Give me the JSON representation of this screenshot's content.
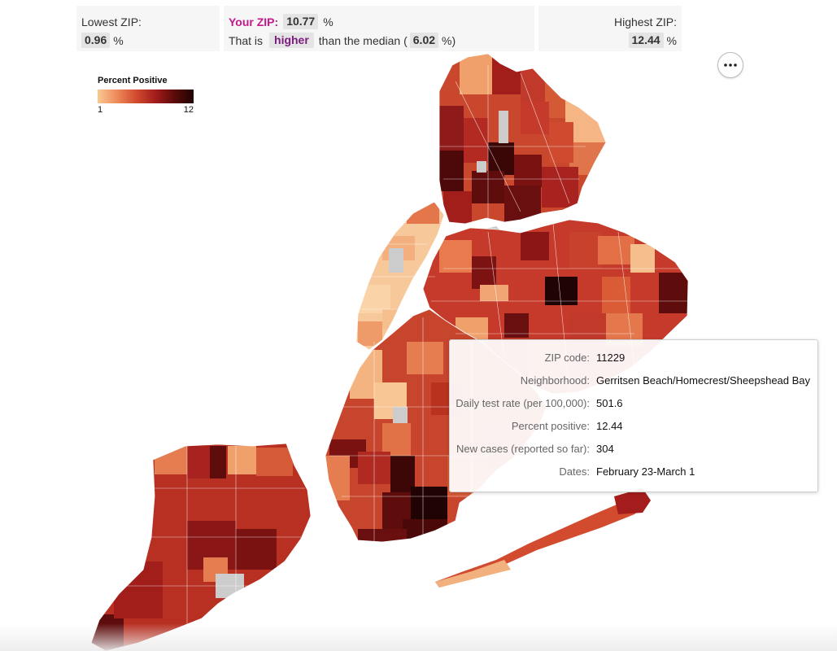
{
  "summary": {
    "lowest": {
      "label": "Lowest ZIP:",
      "value": "0.96",
      "unit": "%"
    },
    "your": {
      "label": "Your ZIP:",
      "value": "10.77",
      "unit": "%",
      "comparison_prefix": "That is",
      "comparison_word": "higher",
      "comparison_middle": "than the median (",
      "median_value": "6.02",
      "median_unit": "%)"
    },
    "highest": {
      "label": "Highest ZIP:",
      "value": "12.44",
      "unit": "%"
    }
  },
  "legend": {
    "title": "Percent Positive",
    "min_label": "1",
    "max_label": "12",
    "color_ramp": [
      "#f9c992",
      "#ee8a5b",
      "#d24b2e",
      "#a41d1c",
      "#5b0a0a",
      "#200303"
    ]
  },
  "colors": {
    "no_data": "#cccccc",
    "accent_pink": "#c2188b",
    "accent_purple": "#7b1b7e"
  },
  "tooltip": {
    "rows": [
      {
        "label": "ZIP code:",
        "value": "11229"
      },
      {
        "label": "Neighborhood:",
        "value": "Gerritsen Beach/Homecrest/Sheepshead Bay"
      },
      {
        "label": "Daily test rate (per 100,000):",
        "value": "501.6"
      },
      {
        "label": "Percent positive:",
        "value": "12.44"
      },
      {
        "label": "New cases (reported so far):",
        "value": "304"
      },
      {
        "label": "Dates:",
        "value": "February 23-March 1"
      }
    ]
  },
  "menu": {
    "icon": "more-options-icon"
  }
}
